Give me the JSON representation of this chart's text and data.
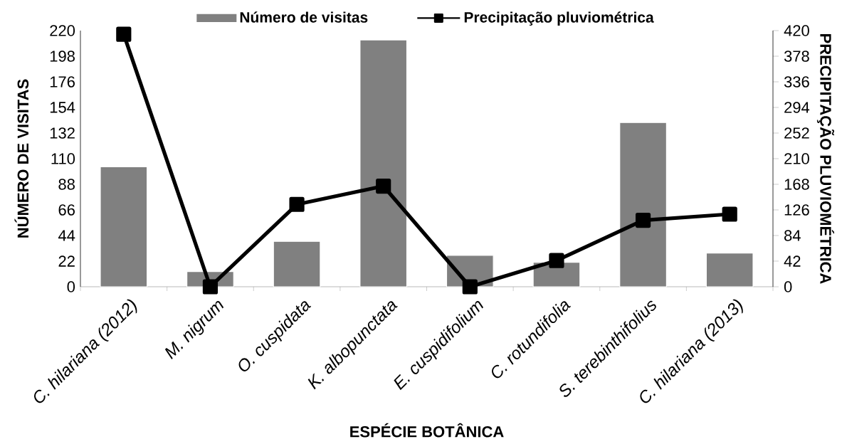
{
  "chart_data": {
    "type": "bar",
    "xlabel": "ESPÉCIE BOTÂNICA",
    "ylabel": "NÚMERO DE VISITAS",
    "y2label": "PRECIPITAÇÃO PLUVIOMÉTRICA",
    "categories": [
      "C. hilariana (2012)",
      "M. nigrum",
      "O. cuspidata",
      "K. albopunctata",
      "E. cuspidifolium",
      "C. rotundifolia",
      "S. terebinthifolius",
      "C. hilariana (2013)"
    ],
    "series": [
      {
        "name": "Número de visitas",
        "color": "#808080",
        "values": [
          103,
          13,
          39,
          212,
          27,
          21,
          141,
          29
        ]
      },
      {
        "name": "Precipitação pluviométrica",
        "type": "line",
        "axis": "y2",
        "color": "#000000",
        "values": [
          414,
          0,
          135,
          165,
          0,
          43,
          109,
          119
        ]
      }
    ],
    "ylim": [
      0,
      220
    ],
    "yticks": [
      0,
      22,
      44,
      66,
      88,
      110,
      132,
      154,
      176,
      198,
      220
    ],
    "y2lim": [
      0,
      420
    ],
    "y2ticks": [
      0,
      42,
      84,
      126,
      168,
      210,
      252,
      294,
      336,
      378,
      420
    ],
    "marker": "square",
    "line_style": "solid",
    "grid": false,
    "legend": "top"
  }
}
